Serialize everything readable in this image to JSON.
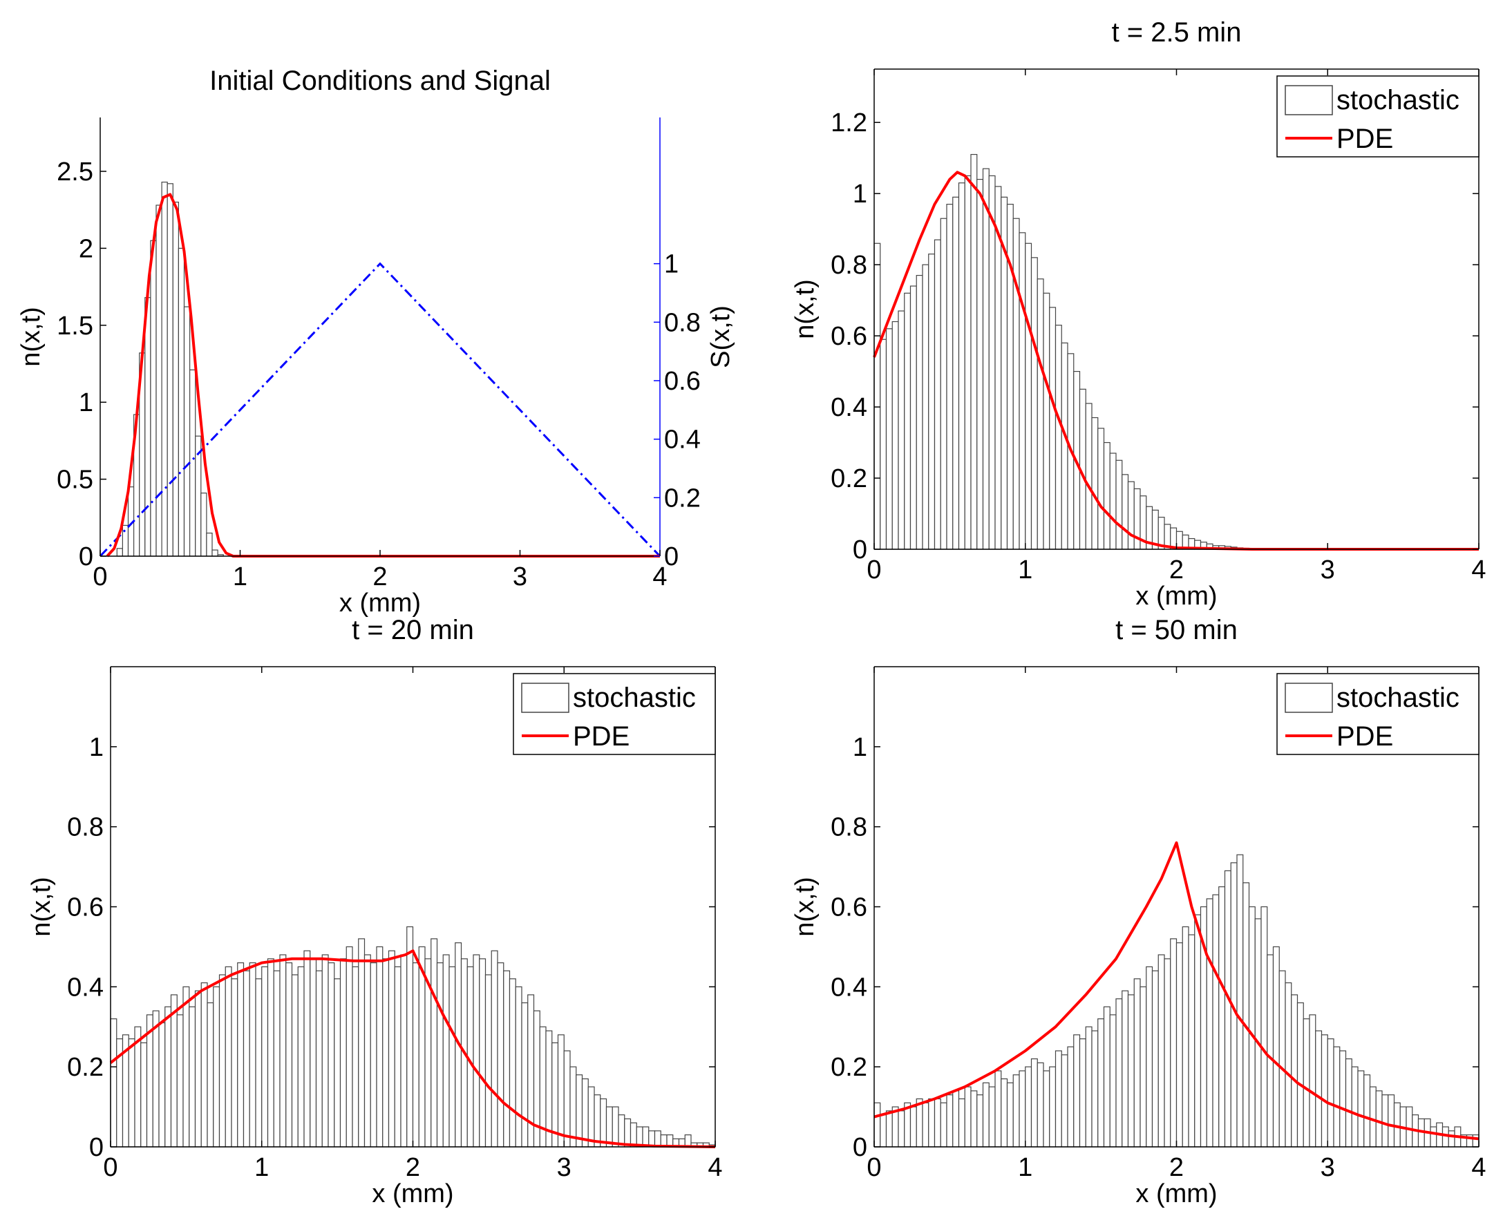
{
  "figure": {
    "description_note": "",
    "colors": {
      "histogram_edge": "#444444",
      "histogram_fill": "#ffffff",
      "pde": "#ff0000",
      "signal": "#0000ff",
      "axis": "#000000"
    }
  },
  "chart_data": [
    {
      "id": "p1",
      "type": "bar",
      "title": "Initial Conditions and Signal",
      "xlabel": "x (mm)",
      "ylabel": "n(x,t)",
      "y2label": "S(x,t)",
      "xlim": [
        0,
        4
      ],
      "ylim": [
        0,
        2.85
      ],
      "y2lim": [
        0,
        1.5
      ],
      "xticks": [
        0,
        1,
        2,
        3,
        4
      ],
      "xticklabels": [
        "0",
        "1",
        "2",
        "3",
        "4"
      ],
      "yticks": [
        0,
        0.5,
        1,
        1.5,
        2,
        2.5
      ],
      "yticklabels": [
        "0",
        "0.5",
        "1",
        "1.5",
        "2",
        "2.5"
      ],
      "y2ticks": [
        0,
        0.2,
        0.4,
        0.6,
        0.8,
        1
      ],
      "y2ticklabels": [
        "0",
        "0.2",
        "0.4",
        "0.6",
        "0.8",
        "1"
      ],
      "legend": null,
      "histogram": {
        "name": "stochastic",
        "bin_width": 0.04,
        "x_start": 0.0,
        "values": [
          0,
          0,
          0,
          0.05,
          0.2,
          0.45,
          0.92,
          1.32,
          1.68,
          2.05,
          2.28,
          2.43,
          2.42,
          2.3,
          2.0,
          1.62,
          1.21,
          0.78,
          0.41,
          0.15,
          0.04,
          0.01
        ]
      },
      "pde": {
        "name": "PDE",
        "x": [
          0.05,
          0.1,
          0.15,
          0.2,
          0.25,
          0.3,
          0.35,
          0.4,
          0.45,
          0.5,
          0.55,
          0.6,
          0.65,
          0.7,
          0.75,
          0.8,
          0.85,
          0.9,
          0.95,
          1.0,
          4.0
        ],
        "y": [
          0.0,
          0.05,
          0.18,
          0.42,
          0.8,
          1.3,
          1.82,
          2.17,
          2.33,
          2.35,
          2.25,
          1.98,
          1.55,
          1.05,
          0.6,
          0.28,
          0.09,
          0.02,
          0.0,
          0.0,
          0.0
        ]
      },
      "signal": {
        "name": "S(x,t)",
        "x": [
          0,
          2,
          4
        ],
        "y": [
          0,
          1,
          0
        ]
      }
    },
    {
      "id": "p2",
      "type": "bar",
      "title": "t = 2.5 min",
      "xlabel": "x (mm)",
      "ylabel": "n(x,t)",
      "xlim": [
        0,
        4
      ],
      "ylim": [
        0,
        1.35
      ],
      "xticks": [
        0,
        1,
        2,
        3,
        4
      ],
      "xticklabels": [
        "0",
        "1",
        "2",
        "3",
        "4"
      ],
      "yticks": [
        0,
        0.2,
        0.4,
        0.6,
        0.8,
        1,
        1.2
      ],
      "yticklabels": [
        "0",
        "0.2",
        "0.4",
        "0.6",
        "0.8",
        "1",
        "1.2"
      ],
      "legend": {
        "stochastic_label": "stochastic",
        "pde_label": "PDE",
        "location": "top-right"
      },
      "histogram": {
        "name": "stochastic",
        "bin_width": 0.04,
        "x_start": 0.0,
        "values": [
          0.86,
          0.59,
          0.62,
          0.64,
          0.67,
          0.72,
          0.74,
          0.77,
          0.8,
          0.83,
          0.87,
          0.93,
          0.97,
          0.99,
          1.03,
          1.05,
          1.11,
          1.04,
          1.07,
          1.05,
          1.02,
          0.99,
          0.97,
          0.93,
          0.89,
          0.86,
          0.82,
          0.76,
          0.72,
          0.68,
          0.63,
          0.58,
          0.55,
          0.5,
          0.45,
          0.41,
          0.37,
          0.34,
          0.3,
          0.27,
          0.25,
          0.21,
          0.19,
          0.17,
          0.15,
          0.12,
          0.11,
          0.09,
          0.07,
          0.06,
          0.05,
          0.04,
          0.03,
          0.025,
          0.02,
          0.015,
          0.01,
          0.01,
          0.008,
          0.006,
          0.004,
          0.003,
          0.002,
          0.001,
          0.0,
          0.0,
          0.0,
          0.0,
          0.0,
          0.0,
          0.0,
          0.0,
          0.0,
          0.0,
          0.0,
          0.0,
          0.0,
          0.0,
          0.0,
          0.0,
          0.0,
          0.0,
          0.0,
          0.0,
          0.0,
          0.0,
          0.0,
          0.0,
          0.0,
          0.0,
          0.0,
          0.0,
          0.0,
          0.0,
          0.0,
          0.0,
          0.0,
          0.0,
          0.0,
          0.0
        ]
      },
      "pde": {
        "name": "PDE",
        "x": [
          0,
          0.1,
          0.2,
          0.3,
          0.4,
          0.5,
          0.55,
          0.6,
          0.7,
          0.8,
          0.9,
          1.0,
          1.1,
          1.2,
          1.3,
          1.4,
          1.5,
          1.6,
          1.7,
          1.8,
          1.9,
          2.0,
          2.5,
          3.0,
          4.0
        ],
        "y": [
          0.54,
          0.65,
          0.76,
          0.87,
          0.97,
          1.04,
          1.06,
          1.05,
          1.0,
          0.91,
          0.8,
          0.66,
          0.52,
          0.39,
          0.28,
          0.19,
          0.12,
          0.075,
          0.04,
          0.02,
          0.01,
          0.004,
          0.0,
          0.0,
          0.0
        ]
      }
    },
    {
      "id": "p3",
      "type": "bar",
      "title": "t = 20 min",
      "xlabel": "x (mm)",
      "ylabel": "n(x,t)",
      "xlim": [
        0,
        4
      ],
      "ylim": [
        0,
        1.2
      ],
      "xticks": [
        0,
        1,
        2,
        3,
        4
      ],
      "xticklabels": [
        "0",
        "1",
        "2",
        "3",
        "4"
      ],
      "yticks": [
        0,
        0.2,
        0.4,
        0.6,
        0.8,
        1
      ],
      "yticklabels": [
        "0",
        "0.2",
        "0.4",
        "0.6",
        "0.8",
        "1"
      ],
      "legend": {
        "stochastic_label": "stochastic",
        "pde_label": "PDE",
        "location": "top-right"
      },
      "histogram": {
        "name": "stochastic",
        "bin_width": 0.04,
        "x_start": 0.0,
        "values": [
          0.32,
          0.27,
          0.28,
          0.27,
          0.3,
          0.26,
          0.33,
          0.34,
          0.31,
          0.35,
          0.38,
          0.33,
          0.4,
          0.35,
          0.39,
          0.41,
          0.36,
          0.4,
          0.43,
          0.45,
          0.42,
          0.46,
          0.44,
          0.46,
          0.42,
          0.45,
          0.47,
          0.44,
          0.48,
          0.46,
          0.43,
          0.45,
          0.49,
          0.47,
          0.44,
          0.48,
          0.46,
          0.42,
          0.47,
          0.5,
          0.45,
          0.52,
          0.48,
          0.46,
          0.5,
          0.47,
          0.49,
          0.45,
          0.48,
          0.55,
          0.46,
          0.5,
          0.47,
          0.52,
          0.46,
          0.48,
          0.45,
          0.51,
          0.47,
          0.45,
          0.48,
          0.47,
          0.43,
          0.49,
          0.46,
          0.44,
          0.42,
          0.4,
          0.36,
          0.38,
          0.34,
          0.3,
          0.29,
          0.26,
          0.28,
          0.24,
          0.2,
          0.18,
          0.17,
          0.15,
          0.13,
          0.12,
          0.1,
          0.1,
          0.08,
          0.07,
          0.06,
          0.05,
          0.05,
          0.04,
          0.04,
          0.03,
          0.03,
          0.02,
          0.02,
          0.03,
          0.01,
          0.01,
          0.01,
          0.005
        ]
      },
      "pde": {
        "name": "PDE",
        "x": [
          0,
          0.2,
          0.4,
          0.6,
          0.8,
          1.0,
          1.2,
          1.4,
          1.6,
          1.8,
          1.95,
          2.0,
          2.1,
          2.2,
          2.3,
          2.4,
          2.5,
          2.6,
          2.7,
          2.8,
          2.9,
          3.0,
          3.2,
          3.4,
          3.6,
          4.0
        ],
        "y": [
          0.21,
          0.27,
          0.33,
          0.39,
          0.43,
          0.46,
          0.47,
          0.47,
          0.465,
          0.465,
          0.48,
          0.49,
          0.41,
          0.33,
          0.26,
          0.2,
          0.15,
          0.11,
          0.08,
          0.055,
          0.04,
          0.028,
          0.014,
          0.006,
          0.002,
          0.0
        ]
      }
    },
    {
      "id": "p4",
      "type": "bar",
      "title": "t = 50 min",
      "xlabel": "x (mm)",
      "ylabel": "n(x,t)",
      "xlim": [
        0,
        4
      ],
      "ylim": [
        0,
        1.2
      ],
      "xticks": [
        0,
        1,
        2,
        3,
        4
      ],
      "xticklabels": [
        "0",
        "1",
        "2",
        "3",
        "4"
      ],
      "yticks": [
        0,
        0.2,
        0.4,
        0.6,
        0.8,
        1
      ],
      "yticklabels": [
        "0",
        "0.2",
        "0.4",
        "0.6",
        "0.8",
        "1"
      ],
      "legend": {
        "stochastic_label": "stochastic",
        "pde_label": "PDE",
        "location": "top-right"
      },
      "histogram": {
        "name": "stochastic",
        "bin_width": 0.04,
        "x_start": 0.0,
        "values": [
          0.11,
          0.08,
          0.09,
          0.1,
          0.09,
          0.11,
          0.1,
          0.12,
          0.11,
          0.12,
          0.12,
          0.11,
          0.13,
          0.14,
          0.12,
          0.15,
          0.14,
          0.13,
          0.16,
          0.15,
          0.19,
          0.17,
          0.16,
          0.18,
          0.19,
          0.2,
          0.22,
          0.21,
          0.19,
          0.2,
          0.24,
          0.23,
          0.25,
          0.28,
          0.27,
          0.3,
          0.29,
          0.32,
          0.35,
          0.33,
          0.37,
          0.39,
          0.38,
          0.42,
          0.4,
          0.45,
          0.44,
          0.48,
          0.47,
          0.52,
          0.51,
          0.55,
          0.53,
          0.58,
          0.6,
          0.62,
          0.63,
          0.65,
          0.69,
          0.71,
          0.73,
          0.66,
          0.6,
          0.57,
          0.6,
          0.48,
          0.5,
          0.44,
          0.41,
          0.38,
          0.36,
          0.32,
          0.33,
          0.29,
          0.28,
          0.27,
          0.25,
          0.24,
          0.22,
          0.2,
          0.19,
          0.18,
          0.15,
          0.14,
          0.13,
          0.13,
          0.11,
          0.1,
          0.1,
          0.08,
          0.07,
          0.07,
          0.05,
          0.06,
          0.05,
          0.04,
          0.05,
          0.03,
          0.03,
          0.03
        ]
      },
      "pde": {
        "name": "PDE",
        "x": [
          0,
          0.2,
          0.4,
          0.6,
          0.8,
          1.0,
          1.2,
          1.4,
          1.6,
          1.8,
          1.9,
          2.0,
          2.1,
          2.2,
          2.4,
          2.6,
          2.8,
          3.0,
          3.2,
          3.4,
          3.6,
          3.8,
          4.0
        ],
        "y": [
          0.075,
          0.095,
          0.12,
          0.15,
          0.19,
          0.24,
          0.3,
          0.38,
          0.47,
          0.6,
          0.67,
          0.76,
          0.6,
          0.48,
          0.33,
          0.23,
          0.16,
          0.11,
          0.08,
          0.055,
          0.04,
          0.028,
          0.02
        ]
      }
    }
  ]
}
